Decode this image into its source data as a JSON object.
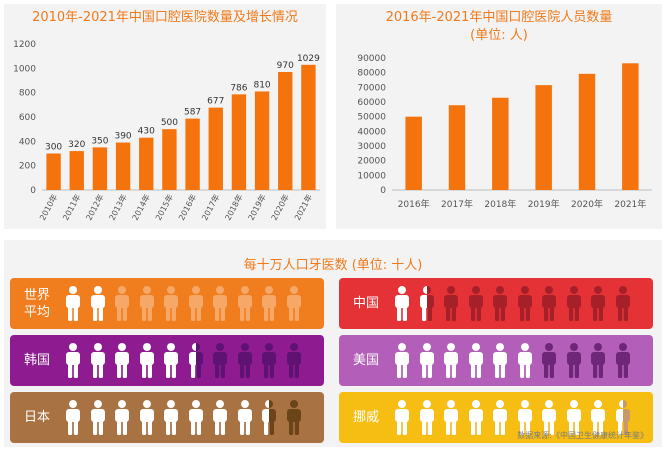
{
  "chart_data": [
    {
      "type": "bar",
      "title": "2010年-2021年中国口腔医院数量及增长情况",
      "categories": [
        "2010年",
        "2011年",
        "2012年",
        "2013年",
        "2014年",
        "2015年",
        "2016年",
        "2017年",
        "2018年",
        "2019年",
        "2020年",
        "2021年"
      ],
      "values": [
        300,
        320,
        350,
        390,
        430,
        500,
        587,
        677,
        786,
        810,
        970,
        1029
      ],
      "data_labels": [
        "300",
        "320",
        "350",
        "390",
        "430",
        "500",
        "587",
        "677",
        "786",
        "810",
        "970",
        "1029"
      ],
      "ylim": [
        0,
        1200
      ],
      "yticks": [
        "0",
        "200",
        "400",
        "600",
        "800",
        "1000",
        "1200"
      ],
      "bar_color": "#f5730c"
    },
    {
      "type": "bar",
      "title": "2016年-2021年中国口腔医院人员数量",
      "subtitle": "(单位: 人)",
      "categories": [
        "2016年",
        "2017年",
        "2018年",
        "2019年",
        "2020年",
        "2021年"
      ],
      "values": [
        50000,
        57800,
        62900,
        71500,
        79200,
        86400
      ],
      "ylim": [
        0,
        90000
      ],
      "yticks": [
        "0",
        "10000",
        "20000",
        "30000",
        "40000",
        "50000",
        "60000",
        "70000",
        "80000",
        "90000"
      ],
      "bar_color": "#f5730c"
    },
    {
      "type": "pictograph",
      "title": "每十万人口牙医数 (单位: 十人)",
      "max_icons": 10,
      "rows": [
        {
          "label": "世界平均",
          "label_lines": [
            "世界",
            "平均"
          ],
          "value": 2,
          "bg": "#f07d1e",
          "faded": "#f6a868"
        },
        {
          "label": "韩国",
          "label_lines": [
            "韩国"
          ],
          "value": 5.5,
          "bg": "#8e1c90",
          "faded": "#5e1272"
        },
        {
          "label": "日本",
          "label_lines": [
            "日本"
          ],
          "value": 8.5,
          "bg": "#a87242",
          "faded": "#6b4418"
        },
        {
          "label": "中国",
          "label_lines": [
            "中国"
          ],
          "value": 1.5,
          "bg": "#e53237",
          "faded": "#a52028"
        },
        {
          "label": "美国",
          "label_lines": [
            "美国"
          ],
          "value": 6,
          "bg": "#b35eb8",
          "faded": "#6e2678"
        },
        {
          "label": "挪威",
          "label_lines": [
            "挪威"
          ],
          "value": 9.5,
          "bg": "#f6bd12",
          "faded": "#c89a6a"
        }
      ]
    }
  ],
  "source": "数据来源:《中国卫生健康统计年鉴》",
  "colors": {
    "accent": "#f07a1a",
    "icon": "#ffffff",
    "axis_text": "#555555",
    "grid": "#bdbdbd"
  }
}
